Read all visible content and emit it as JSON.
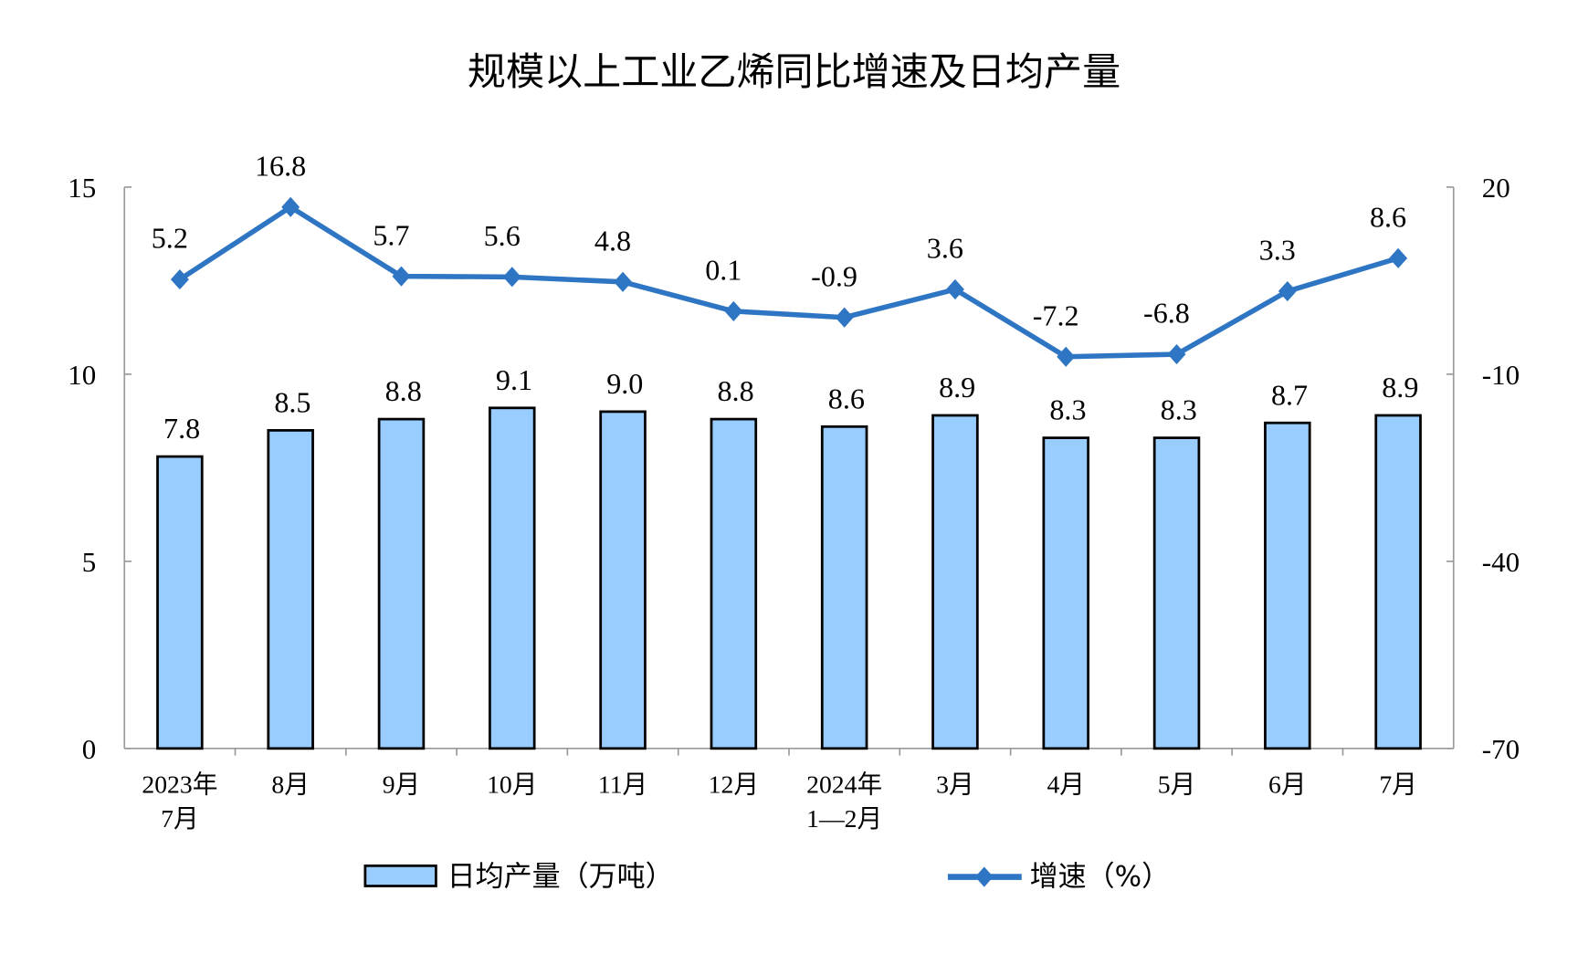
{
  "chart_data": {
    "type": "bar+line",
    "title": "规模以上工业乙烯同比增速及日均产量",
    "categories": [
      [
        "2023年",
        "7月"
      ],
      [
        "8月"
      ],
      [
        "9月"
      ],
      [
        "10月"
      ],
      [
        "11月"
      ],
      [
        "12月"
      ],
      [
        "2024年",
        "1—2月"
      ],
      [
        "3月"
      ],
      [
        "4月"
      ],
      [
        "5月"
      ],
      [
        "6月"
      ],
      [
        "7月"
      ]
    ],
    "series": [
      {
        "name": "日均产量（万吨）",
        "type": "bar",
        "axis": "left",
        "color": "#99CCFF",
        "values": [
          7.8,
          8.5,
          8.8,
          9.1,
          9.0,
          8.8,
          8.6,
          8.9,
          8.3,
          8.3,
          8.7,
          8.9
        ],
        "labels": [
          "7.8",
          "8.5",
          "8.8",
          "9.1",
          "9.0",
          "8.8",
          "8.6",
          "8.9",
          "8.3",
          "8.3",
          "8.7",
          "8.9"
        ]
      },
      {
        "name": "增速（%）",
        "type": "line",
        "axis": "right",
        "color": "#2E75C3",
        "values": [
          5.2,
          16.8,
          5.7,
          5.6,
          4.8,
          0.1,
          -0.9,
          3.6,
          -7.2,
          -6.8,
          3.3,
          8.6
        ],
        "labels": [
          "5.2",
          "16.8",
          "5.7",
          "5.6",
          "4.8",
          "0.1",
          "-0.9",
          "3.6",
          "-7.2",
          "-6.8",
          "3.3",
          "8.6"
        ]
      }
    ],
    "left_axis": {
      "range": [
        0,
        15
      ],
      "ticks": [
        "0",
        "5",
        "10",
        "15"
      ]
    },
    "right_axis": {
      "range": [
        -70,
        20
      ],
      "ticks": [
        "-70",
        "-40",
        "-10",
        "20"
      ]
    },
    "grid": false,
    "legend": "bottom"
  }
}
